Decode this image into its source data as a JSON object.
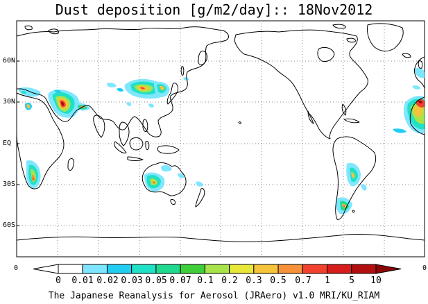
{
  "title": "Dust deposition [g/m2/day]:: 18Nov2012",
  "footer": "The Japanese Reanalysis for Aerosol (JRAero) v1.0 MRI/KU_RIAM",
  "lat_labels": [
    "60N",
    "30N",
    "EQ",
    "30S",
    "60S"
  ],
  "colorbar": {
    "edge_left": "0",
    "edge_right": "0",
    "labels": [
      "0",
      "0.01",
      "0.02",
      "0.03",
      "0.05",
      "0.07",
      "0.1",
      "0.2",
      "0.3",
      "0.5",
      "0.7",
      "1",
      "5",
      "10"
    ],
    "colors": [
      "#ffffff",
      "#ffffff",
      "#7ee6ff",
      "#22cdf2",
      "#20e0c6",
      "#20d98e",
      "#3fcf3a",
      "#a8e34a",
      "#e8e839",
      "#f6c43a",
      "#f7923a",
      "#f2422e",
      "#d71c1c",
      "#b40f0f",
      "#8c0606"
    ]
  },
  "colors": {
    "coastline": "#000000",
    "gridline": "#888888",
    "background": "#ffffff"
  },
  "dust_regions": [
    {
      "name": "west-africa-sahara",
      "max_level": 4
    },
    {
      "name": "arabian-peninsula",
      "max_level": 12
    },
    {
      "name": "persian-gulf",
      "max_level": 5
    },
    {
      "name": "taklimakan-gobi",
      "max_level": 9
    },
    {
      "name": "northern-china",
      "max_level": 6
    },
    {
      "name": "southern-africa",
      "max_level": 9
    },
    {
      "name": "australia",
      "max_level": 9
    },
    {
      "name": "argentina-patagonia",
      "max_level": 7
    },
    {
      "name": "west-sahara-atlantic",
      "max_level": 12
    },
    {
      "name": "north-atlantic-plume",
      "max_level": 3
    }
  ]
}
